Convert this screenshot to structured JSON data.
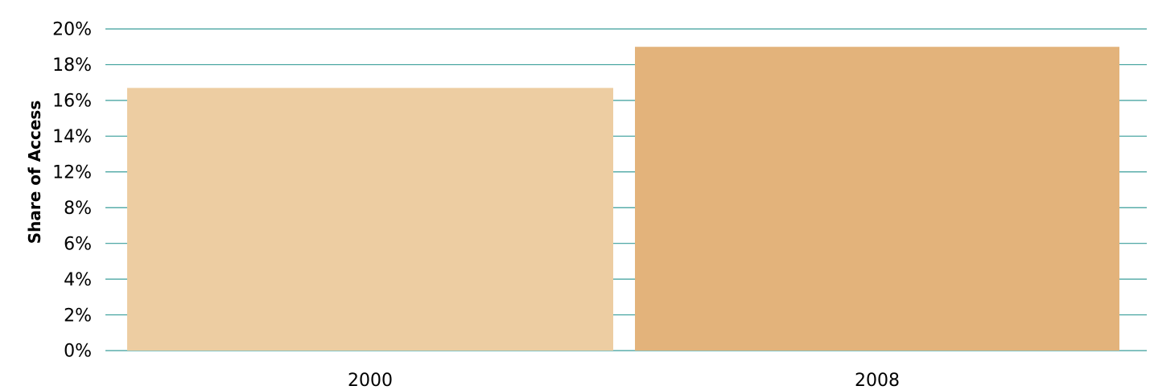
{
  "chart_data": {
    "type": "bar",
    "title": "",
    "xlabel": "",
    "ylabel": "Share of Access",
    "categories": [
      "2000",
      "2008"
    ],
    "values": [
      16.7,
      19.0
    ],
    "bar_colors": [
      "#edcda2",
      "#e3b37b"
    ],
    "gridline_color": "#3a9e9a",
    "y_ticks": [
      "0%",
      "2%",
      "4%",
      "6%",
      "8%",
      "12%",
      "14%",
      "16%",
      "18%",
      "20%"
    ],
    "ylim": [
      0,
      20
    ],
    "grid": true,
    "legend": "none"
  }
}
